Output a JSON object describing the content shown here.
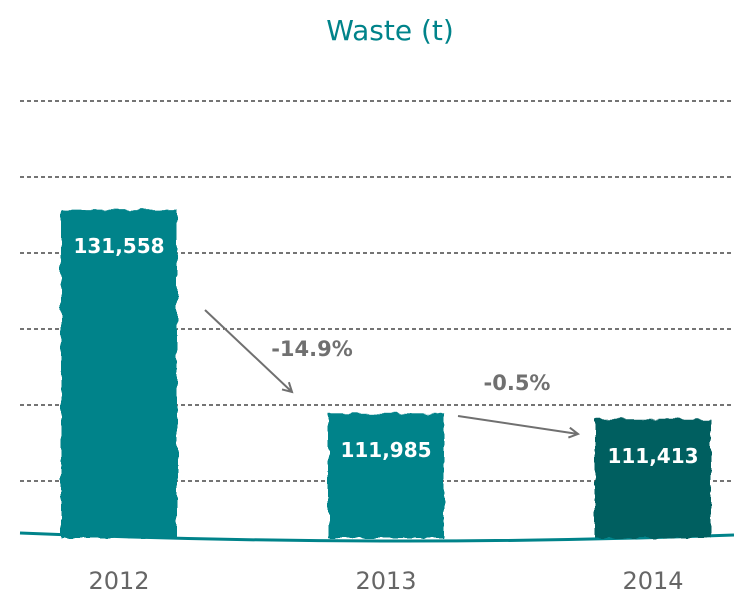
{
  "chart_data": {
    "type": "bar",
    "title": "Waste (t)",
    "categories": [
      "2012",
      "2013",
      "2014"
    ],
    "values": [
      131558,
      111985,
      111413
    ],
    "value_labels": [
      "131,558",
      "111,985",
      "111,413"
    ],
    "colors": [
      "#00838a",
      "#00838a",
      "#005f60"
    ],
    "ylim": [
      100000,
      142000
    ],
    "annotations": [
      {
        "text": "-14.9%"
      },
      {
        "text": "-0.5%"
      }
    ]
  }
}
